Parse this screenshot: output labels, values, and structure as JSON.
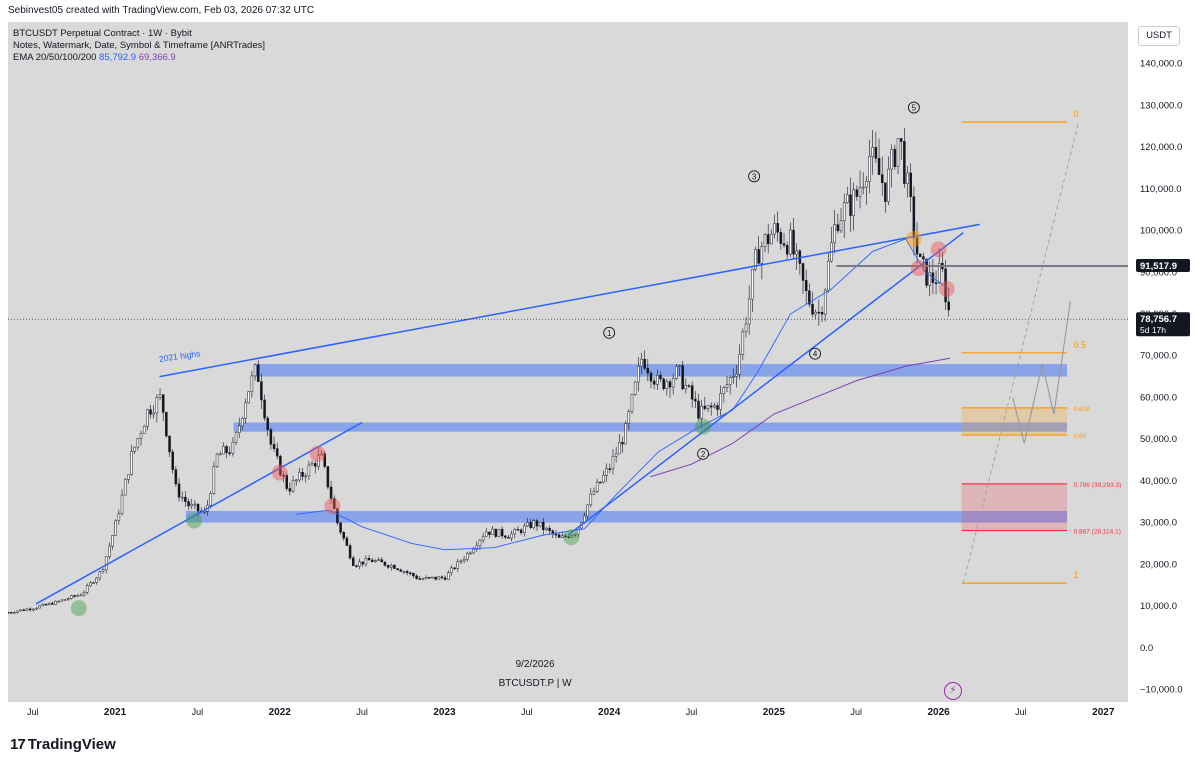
{
  "header": {
    "credit": "Sebinvest05 created with TradingView.com, Feb 03, 2026 07:32 UTC"
  },
  "legend": {
    "symbol_line": "BTCUSDT Perpetual Contract · 1W · Bybit",
    "notes_line": "Notes, Watermark, Date, Symbol & Timeframe [ANRTrades]",
    "ema_label": "EMA 20/50/100/200",
    "ema_value_1": "85,792.9",
    "ema_value_2": "69,366.9"
  },
  "currency_button": "USDT",
  "watermark": {
    "date": "9/2/2026",
    "symbol": "BTCUSDT.P | W"
  },
  "footer": {
    "brand": "TradingView",
    "brand_mark": "17"
  },
  "chart_data": {
    "type": "line",
    "title": "",
    "ylim": [
      -13000,
      150000
    ],
    "y_ticks": [
      140000,
      130000,
      120000,
      110000,
      100000,
      90000,
      80000,
      70000,
      60000,
      50000,
      40000,
      30000,
      20000,
      10000,
      0,
      -10000
    ],
    "y_tick_labels": [
      "140,000.0",
      "130,000.0",
      "120,000.0",
      "110,000.0",
      "100,000.0",
      "90,000.0",
      "80,000.0",
      "70,000.0",
      "60,000.0",
      "50,000.0",
      "40,000.0",
      "30,000.0",
      "20,000.0",
      "10,000.0",
      "0.0",
      "−10,000.0"
    ],
    "x_range": [
      2020.35,
      2027.15
    ],
    "x_ticks": [
      {
        "t": 2020.5,
        "label": "Jul",
        "major": false
      },
      {
        "t": 2021.0,
        "label": "2021",
        "major": true
      },
      {
        "t": 2021.5,
        "label": "Jul",
        "major": false
      },
      {
        "t": 2022.0,
        "label": "2022",
        "major": true
      },
      {
        "t": 2022.5,
        "label": "Jul",
        "major": false
      },
      {
        "t": 2023.0,
        "label": "2023",
        "major": true
      },
      {
        "t": 2023.5,
        "label": "Jul",
        "major": false
      },
      {
        "t": 2024.0,
        "label": "2024",
        "major": true
      },
      {
        "t": 2024.5,
        "label": "Jul",
        "major": false
      },
      {
        "t": 2025.0,
        "label": "2025",
        "major": true
      },
      {
        "t": 2025.5,
        "label": "Jul",
        "major": false
      },
      {
        "t": 2026.0,
        "label": "2026",
        "major": true
      },
      {
        "t": 2026.5,
        "label": "Jul",
        "major": false
      },
      {
        "t": 2027.0,
        "label": "2027",
        "major": true
      }
    ],
    "price_path": [
      [
        2020.35,
        8500
      ],
      [
        2020.5,
        9500
      ],
      [
        2020.65,
        11000
      ],
      [
        2020.8,
        13000
      ],
      [
        2020.92,
        18500
      ],
      [
        2021.0,
        29000
      ],
      [
        2021.1,
        46000
      ],
      [
        2021.2,
        57000
      ],
      [
        2021.28,
        60000
      ],
      [
        2021.37,
        38000
      ],
      [
        2021.45,
        34000
      ],
      [
        2021.55,
        32000
      ],
      [
        2021.62,
        46000
      ],
      [
        2021.72,
        48000
      ],
      [
        2021.8,
        61000
      ],
      [
        2021.86,
        67000
      ],
      [
        2021.95,
        48000
      ],
      [
        2022.05,
        38000
      ],
      [
        2022.15,
        42000
      ],
      [
        2022.25,
        46000
      ],
      [
        2022.35,
        30000
      ],
      [
        2022.45,
        20000
      ],
      [
        2022.55,
        21000
      ],
      [
        2022.7,
        19500
      ],
      [
        2022.85,
        16500
      ],
      [
        2023.0,
        16800
      ],
      [
        2023.15,
        23000
      ],
      [
        2023.25,
        28000
      ],
      [
        2023.4,
        27000
      ],
      [
        2023.55,
        30000
      ],
      [
        2023.7,
        26000
      ],
      [
        2023.8,
        28000
      ],
      [
        2023.9,
        37000
      ],
      [
        2024.0,
        43000
      ],
      [
        2024.1,
        52000
      ],
      [
        2024.2,
        70000
      ],
      [
        2024.3,
        63000
      ],
      [
        2024.42,
        66000
      ],
      [
        2024.55,
        56000
      ],
      [
        2024.65,
        58000
      ],
      [
        2024.78,
        68000
      ],
      [
        2024.9,
        95000
      ],
      [
        2025.0,
        100000
      ],
      [
        2025.1,
        97000
      ],
      [
        2025.2,
        84000
      ],
      [
        2025.28,
        80000
      ],
      [
        2025.38,
        103000
      ],
      [
        2025.5,
        108000
      ],
      [
        2025.58,
        118000
      ],
      [
        2025.68,
        110000
      ],
      [
        2025.76,
        123000
      ],
      [
        2025.82,
        108000
      ],
      [
        2025.88,
        92000
      ],
      [
        2025.95,
        88000
      ],
      [
        2026.02,
        90000
      ],
      [
        2026.07,
        78800
      ]
    ],
    "ema_fast_path": [
      [
        2022.1,
        32000
      ],
      [
        2022.3,
        33000
      ],
      [
        2022.5,
        29000
      ],
      [
        2022.8,
        25000
      ],
      [
        2023.0,
        23500
      ],
      [
        2023.3,
        24000
      ],
      [
        2023.6,
        27000
      ],
      [
        2023.85,
        28500
      ],
      [
        2024.05,
        37000
      ],
      [
        2024.3,
        47000
      ],
      [
        2024.55,
        53000
      ],
      [
        2024.75,
        57000
      ],
      [
        2024.9,
        66000
      ],
      [
        2025.1,
        80000
      ],
      [
        2025.35,
        86000
      ],
      [
        2025.6,
        95000
      ],
      [
        2025.8,
        98000
      ],
      [
        2025.92,
        90000
      ],
      [
        2026.07,
        85800
      ]
    ],
    "ema_slow_path": [
      [
        2024.25,
        41000
      ],
      [
        2024.5,
        44000
      ],
      [
        2024.75,
        49000
      ],
      [
        2025.0,
        56000
      ],
      [
        2025.25,
        60000
      ],
      [
        2025.5,
        64000
      ],
      [
        2025.8,
        67500
      ],
      [
        2026.07,
        69400
      ]
    ],
    "trendlines": [
      {
        "name": "upper-trendline",
        "color": "#2962ff",
        "points": [
          [
            2021.27,
            65000
          ],
          [
            2026.25,
            101500
          ]
        ]
      },
      {
        "name": "lower-trendline-2021",
        "color": "#2962ff",
        "points": [
          [
            2020.52,
            10500
          ],
          [
            2022.5,
            54000
          ]
        ]
      },
      {
        "name": "lower-trendline-2023",
        "color": "#2962ff",
        "points": [
          [
            2023.75,
            27000
          ],
          [
            2026.15,
            99500
          ]
        ]
      },
      {
        "name": "resistance-line",
        "color": "#787b86",
        "points": [
          [
            2025.38,
            91517.9
          ],
          [
            2027.15,
            91517.9
          ]
        ]
      }
    ],
    "zones": [
      {
        "name": "zone-67k",
        "color": "#2962ff",
        "t0": 2021.85,
        "t1": 2026.78,
        "y0": 65000,
        "y1": 68000
      },
      {
        "name": "zone-53k",
        "color": "#2962ff",
        "t0": 2021.72,
        "t1": 2026.78,
        "y0": 51800,
        "y1": 54000
      },
      {
        "name": "zone-31k",
        "color": "#2962ff",
        "t0": 2021.43,
        "t1": 2026.78,
        "y0": 30000,
        "y1": 32800
      },
      {
        "name": "fib-golden-zone",
        "color": "#ff9800",
        "t0": 2026.14,
        "t1": 2026.78,
        "y0": 51000,
        "y1": 57500
      },
      {
        "name": "fib-deep-zone",
        "color": "#f23645",
        "t0": 2026.14,
        "t1": 2026.78,
        "y0": 28114,
        "y1": 39293
      }
    ],
    "fib_levels": [
      {
        "ratio": "0",
        "value": 126000,
        "color": "#ff9800",
        "label": "0"
      },
      {
        "ratio": "0.5",
        "value": 70700,
        "color": "#ff9800",
        "label": "0.5"
      },
      {
        "ratio": "0.618",
        "value": 57500,
        "color": "#ff9800",
        "label": "0.618"
      },
      {
        "ratio": "0.65",
        "value": 51000,
        "color": "#ff9800",
        "label": "0.65"
      },
      {
        "ratio": "0.786",
        "value": 39293,
        "color": "#f23645",
        "label": "0.786 (39,293.3)"
      },
      {
        "ratio": "0.887",
        "value": 28114,
        "color": "#f23645",
        "label": "0.887 (28,114.1)"
      },
      {
        "ratio": "1",
        "value": 15500,
        "color": "#ff9800",
        "label": "1"
      }
    ],
    "projection_path": [
      [
        2026.45,
        60000
      ],
      [
        2026.52,
        49000
      ],
      [
        2026.63,
        68000
      ],
      [
        2026.7,
        56000
      ],
      [
        2026.8,
        83000
      ]
    ],
    "wave_labels": [
      {
        "label": "1",
        "t": 2024.0,
        "y": 75500
      },
      {
        "label": "2",
        "t": 2024.57,
        "y": 46500
      },
      {
        "label": "3",
        "t": 2024.88,
        "y": 113000
      },
      {
        "label": "4",
        "t": 2025.25,
        "y": 70500
      },
      {
        "label": "5",
        "t": 2025.85,
        "y": 129500
      }
    ],
    "circles": [
      {
        "color": "#43a047",
        "t": 2020.78,
        "y": 9500
      },
      {
        "color": "#43a047",
        "t": 2021.48,
        "y": 30500
      },
      {
        "color": "#43a047",
        "t": 2023.77,
        "y": 26500
      },
      {
        "color": "#43a047",
        "t": 2024.57,
        "y": 53000
      },
      {
        "color": "#ef5350",
        "t": 2022.0,
        "y": 42000
      },
      {
        "color": "#ef5350",
        "t": 2022.23,
        "y": 46500
      },
      {
        "color": "#ef5350",
        "t": 2022.32,
        "y": 34000
      },
      {
        "color": "#ff9800",
        "t": 2025.85,
        "y": 98000
      },
      {
        "color": "#ef5350",
        "t": 2025.88,
        "y": 91000
      },
      {
        "color": "#ef5350",
        "t": 2026.0,
        "y": 95500
      },
      {
        "color": "#ef5350",
        "t": 2026.05,
        "y": 86000
      }
    ],
    "annotations": [
      {
        "text": "2021 highs",
        "t": 2021.27,
        "y": 68500
      }
    ],
    "price_tags": [
      {
        "name": "resistance-tag",
        "value": 91517.9,
        "text": "91,517.9",
        "bg": "#131722",
        "fg": "#ffffff"
      },
      {
        "name": "last-price-tag",
        "value": 78756.7,
        "text": "78,756.7",
        "sub": "5d 17h",
        "bg": "#131722",
        "fg": "#ffffff"
      }
    ],
    "last_price": 78756.7
  }
}
